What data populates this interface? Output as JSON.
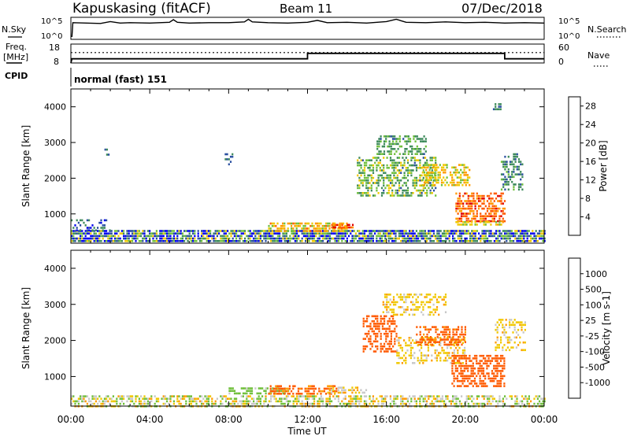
{
  "header": {
    "station": "Kapuskasing (fitACF)",
    "beam": "Beam 11",
    "date": "07/Dec/2018"
  },
  "strip_labels": {
    "nsky": "N.Sky",
    "nsearch": "N.Search",
    "freq": "Freq.",
    "freq_unit": "[MHz]",
    "nave": "Nave",
    "cpid": "CPID",
    "cpid_value": "normal (fast) 151"
  },
  "time_axis": {
    "label": "Time UT",
    "ticks": [
      "00:00",
      "04:00",
      "08:00",
      "12:00",
      "16:00",
      "20:00",
      "00:00"
    ]
  },
  "colors": {
    "power": [
      "#0000ee",
      "#2a4fa0",
      "#3d8a5a",
      "#6fbf3a",
      "#f0c800",
      "#ff9a00",
      "#ff5a00",
      "#e00000"
    ],
    "velocity": [
      "#e00000",
      "#ff5a00",
      "#ff9a00",
      "#f0c800",
      "#c8c8c8",
      "#6fbf3a",
      "#3d8a5a",
      "#2a4fa0",
      "#0000ee"
    ]
  },
  "chart_data": [
    {
      "type": "line",
      "name": "nsky-nsearch",
      "left_label": "N.Sky",
      "right_label": "N.Search",
      "left_ticks": [
        "10^5",
        "10^0"
      ],
      "right_ticks": [
        "10^5",
        "10^0"
      ],
      "x_unit": "hours UT",
      "xlim": [
        0,
        24
      ],
      "x": [
        0.05,
        0.1,
        1.5,
        2.0,
        2.5,
        3.0,
        4.0,
        5.0,
        5.2,
        5.4,
        6.0,
        7.0,
        8.0,
        8.8,
        9.0,
        9.2,
        10.0,
        11.0,
        12.0,
        12.5,
        13.0,
        14.0,
        15.0,
        16.0,
        16.5,
        17.0,
        18.0,
        19.0,
        20.0,
        21.0,
        22.0,
        23.0,
        24.0
      ],
      "y": [
        0.2,
        4.0,
        3.8,
        4.3,
        3.9,
        4.0,
        3.9,
        4.1,
        4.8,
        4.1,
        3.9,
        4.0,
        4.0,
        4.2,
        4.9,
        4.2,
        4.0,
        3.9,
        4.1,
        4.6,
        4.0,
        4.1,
        3.9,
        4.3,
        4.9,
        4.1,
        4.0,
        4.2,
        4.0,
        4.1,
        3.9,
        4.0,
        3.9
      ],
      "ylim": [
        0,
        5
      ]
    },
    {
      "type": "line",
      "name": "freq-nave",
      "left_label": "Freq. [MHz]",
      "right_label": "Nave",
      "left_ticks": [
        18,
        8
      ],
      "right_ticks": [
        60,
        0
      ],
      "x_unit": "hours UT",
      "xlim": [
        0,
        24
      ],
      "freq": {
        "x": [
          0,
          0.05,
          12.0,
          12.0,
          22.0,
          22.0,
          24.0
        ],
        "y": [
          8.0,
          10.2,
          10.2,
          13.1,
          13.1,
          10.2,
          10.2
        ],
        "ylim": [
          8,
          18
        ]
      },
      "nave": {
        "value": 33,
        "ylim": [
          0,
          60
        ]
      }
    },
    {
      "type": "heatmap",
      "name": "power",
      "xlabel": "",
      "ylabel": "Slant Range [km]",
      "y_ticks": [
        1000,
        2000,
        3000,
        4000
      ],
      "ylim": [
        180,
        4500
      ],
      "xlim": [
        0,
        24
      ],
      "colorbar": {
        "label": "Power [dB]",
        "ticks": [
          4,
          8,
          12,
          16,
          20,
          24,
          28
        ],
        "range": [
          0,
          30
        ]
      },
      "echo_regions": [
        {
          "x": [
            0,
            24
          ],
          "y": [
            200,
            550
          ],
          "value": 8,
          "spread": 10,
          "density": 0.8
        },
        {
          "x": [
            0,
            2
          ],
          "y": [
            550,
            850
          ],
          "value": 6,
          "spread": 4,
          "density": 0.35
        },
        {
          "x": [
            10,
            14
          ],
          "y": [
            520,
            760
          ],
          "value": 18,
          "spread": 5,
          "density": 0.7
        },
        {
          "x": [
            13.2,
            14.3
          ],
          "y": [
            600,
            720
          ],
          "value": 24,
          "spread": 3,
          "density": 0.8
        },
        {
          "x": [
            14.5,
            18.5
          ],
          "y": [
            1500,
            2600
          ],
          "value": 12,
          "spread": 5,
          "density": 0.5
        },
        {
          "x": [
            15.5,
            18
          ],
          "y": [
            2700,
            3200
          ],
          "value": 11,
          "spread": 4,
          "density": 0.5
        },
        {
          "x": [
            17.8,
            20.2
          ],
          "y": [
            1800,
            2400
          ],
          "value": 17,
          "spread": 5,
          "density": 0.55
        },
        {
          "x": [
            19.5,
            22.0
          ],
          "y": [
            800,
            1600
          ],
          "value": 24,
          "spread": 4,
          "density": 0.6
        },
        {
          "x": [
            19.5,
            21.9
          ],
          "y": [
            720,
            800
          ],
          "value": 16,
          "spread": 3,
          "density": 0.6
        },
        {
          "x": [
            21.8,
            22.9
          ],
          "y": [
            1700,
            2700
          ],
          "value": 9,
          "spread": 3,
          "density": 0.4
        },
        {
          "x": [
            21.4,
            21.8
          ],
          "y": [
            3900,
            4100
          ],
          "value": 8,
          "spread": 2,
          "density": 0.5
        },
        {
          "x": [
            1.7,
            1.9
          ],
          "y": [
            2600,
            2900
          ],
          "value": 8,
          "spread": 2,
          "density": 0.4
        },
        {
          "x": [
            7.8,
            8.2
          ],
          "y": [
            2400,
            2700
          ],
          "value": 7,
          "spread": 2,
          "density": 0.4
        }
      ]
    },
    {
      "type": "heatmap",
      "name": "velocity",
      "xlabel": "Time UT",
      "ylabel": "Slant Range [km]",
      "y_ticks": [
        1000,
        2000,
        3000,
        4000
      ],
      "ylim": [
        180,
        4500
      ],
      "xlim": [
        0,
        24
      ],
      "colorbar": {
        "label": "Velocity [m s-1]",
        "ticks": [
          1000,
          500,
          100,
          25,
          -25,
          -100,
          -500,
          -1000
        ],
        "range": [
          -1000,
          1000
        ]
      },
      "echo_regions": [
        {
          "x": [
            0,
            24
          ],
          "y": [
            200,
            480
          ],
          "value": 60,
          "spread": 3,
          "density": 0.55
        },
        {
          "x": [
            8,
            11
          ],
          "y": [
            540,
            700
          ],
          "value": 150,
          "spread": 2,
          "density": 0.6
        },
        {
          "x": [
            10,
            13.5
          ],
          "y": [
            520,
            760
          ],
          "value": -150,
          "spread": 2,
          "density": 0.6
        },
        {
          "x": [
            13,
            15
          ],
          "y": [
            540,
            720
          ],
          "value": 0,
          "spread": 2,
          "density": 0.5
        },
        {
          "x": [
            14.8,
            16.5
          ],
          "y": [
            1700,
            2700
          ],
          "value": -300,
          "spread": 2,
          "density": 0.5
        },
        {
          "x": [
            15.8,
            19
          ],
          "y": [
            2700,
            3300
          ],
          "value": 0,
          "spread": 1,
          "density": 0.45
        },
        {
          "x": [
            16.5,
            20
          ],
          "y": [
            1400,
            2100
          ],
          "value": 0,
          "spread": 1,
          "density": 0.4
        },
        {
          "x": [
            17.5,
            20
          ],
          "y": [
            1900,
            2400
          ],
          "value": -150,
          "spread": 2,
          "density": 0.5
        },
        {
          "x": [
            19.3,
            22
          ],
          "y": [
            750,
            1600
          ],
          "value": -300,
          "spread": 2,
          "density": 0.6
        },
        {
          "x": [
            21.5,
            23
          ],
          "y": [
            1700,
            2600
          ],
          "value": 0,
          "spread": 1,
          "density": 0.35
        }
      ]
    }
  ]
}
